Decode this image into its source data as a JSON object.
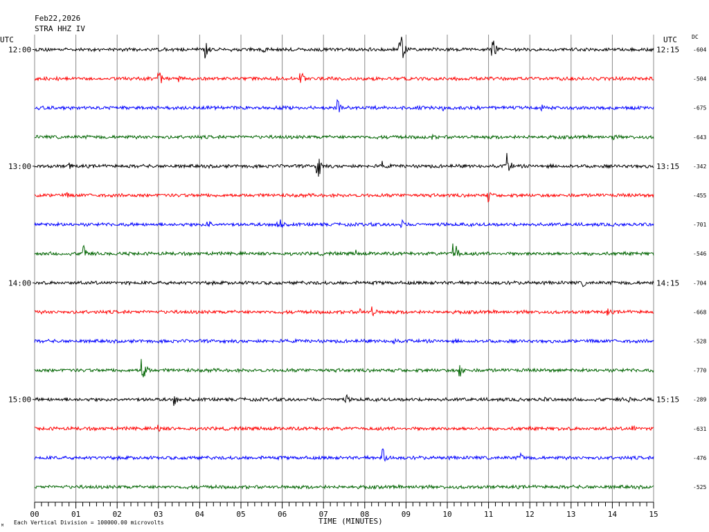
{
  "header": {
    "date": "Feb22,2026",
    "station": "STRA HHZ IV",
    "utc_left": "UTC",
    "utc_right": "UTC",
    "dc_label": "DC"
  },
  "footer": {
    "scale_note": "Each Vertical Division = 100000.00 microvolts",
    "corner_mark": "M"
  },
  "chart_data": {
    "type": "line",
    "title": "",
    "xlabel": "TIME (MINUTES)",
    "ylabel": "",
    "x_ticks": [
      "00",
      "01",
      "02",
      "03",
      "04",
      "05",
      "06",
      "07",
      "08",
      "09",
      "10",
      "11",
      "12",
      "13",
      "14",
      "15"
    ],
    "xlim": [
      0,
      15
    ],
    "grid": true,
    "trace_colors": [
      "#000000",
      "#ff0000",
      "#0000ff",
      "#006400"
    ],
    "left_time_labels": [
      {
        "row": 0,
        "text": "12:00"
      },
      {
        "row": 4,
        "text": "13:00"
      },
      {
        "row": 8,
        "text": "14:00"
      },
      {
        "row": 12,
        "text": "15:00"
      }
    ],
    "right_time_labels": [
      {
        "row": 0,
        "text": "12:15"
      },
      {
        "row": 4,
        "text": "13:15"
      },
      {
        "row": 8,
        "text": "14:15"
      },
      {
        "row": 12,
        "text": "15:15"
      }
    ],
    "dc_offsets": [
      "-604",
      "-504",
      "-675",
      "-643",
      "-342",
      "-455",
      "-701",
      "-546",
      "-704",
      "-668",
      "-528",
      "-770",
      "-289",
      "-631",
      "-476",
      "-525"
    ],
    "traces": [
      {
        "events": [
          [
            4.15,
            14
          ],
          [
            5.55,
            6
          ],
          [
            8.85,
            34
          ],
          [
            11.1,
            18
          ]
        ]
      },
      {
        "events": [
          [
            3.0,
            20
          ],
          [
            3.5,
            6
          ],
          [
            6.45,
            16
          ],
          [
            5.9,
            5
          ]
        ]
      },
      {
        "events": [
          [
            7.35,
            12
          ],
          [
            9.9,
            6
          ],
          [
            12.3,
            5
          ]
        ]
      },
      {
        "events": [
          [
            9.65,
            4
          ],
          [
            14.05,
            5
          ]
        ]
      },
      {
        "events": [
          [
            0.85,
            8
          ],
          [
            6.85,
            26
          ],
          [
            8.45,
            8
          ],
          [
            11.45,
            20
          ]
        ]
      },
      {
        "events": [
          [
            11.0,
            10
          ],
          [
            0.8,
            4
          ]
        ]
      },
      {
        "events": [
          [
            4.2,
            10
          ],
          [
            5.9,
            18
          ],
          [
            8.9,
            8
          ]
        ]
      },
      {
        "events": [
          [
            1.2,
            16
          ],
          [
            7.8,
            6
          ],
          [
            10.15,
            28
          ]
        ]
      },
      {
        "events": [
          [
            13.3,
            6
          ]
        ]
      },
      {
        "events": [
          [
            7.9,
            7
          ],
          [
            8.2,
            9
          ],
          [
            13.9,
            6
          ]
        ]
      },
      {
        "events": [
          [
            8.7,
            7
          ]
        ]
      },
      {
        "events": [
          [
            2.6,
            30
          ],
          [
            10.3,
            14
          ]
        ]
      },
      {
        "events": [
          [
            3.4,
            10
          ],
          [
            7.55,
            9
          ],
          [
            12.35,
            6
          ],
          [
            14.4,
            5
          ]
        ]
      },
      {
        "events": [
          [
            3.0,
            7
          ],
          [
            14.5,
            6
          ]
        ]
      },
      {
        "events": [
          [
            8.45,
            18
          ],
          [
            11.8,
            10
          ],
          [
            3.8,
            5
          ]
        ]
      },
      {
        "events": [
          [
            9.25,
            4
          ]
        ]
      }
    ]
  }
}
